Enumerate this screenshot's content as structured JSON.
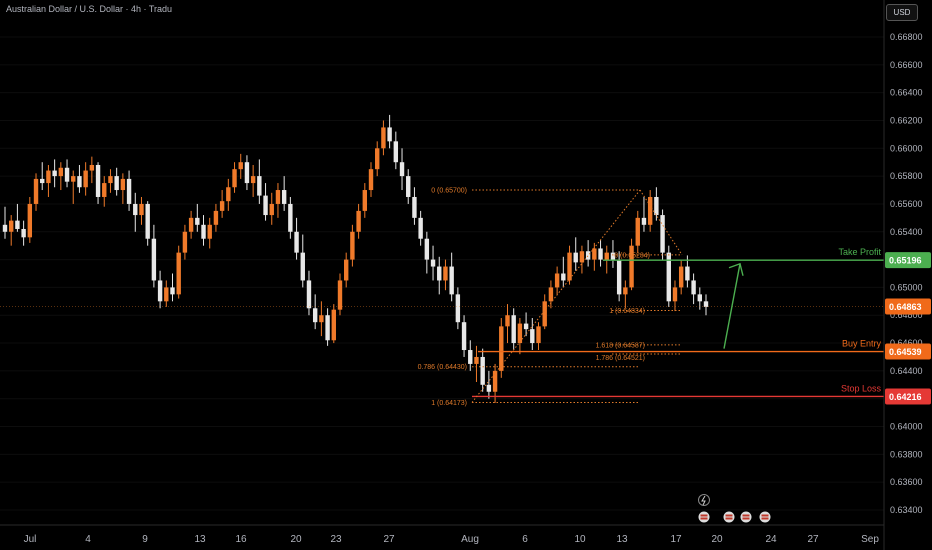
{
  "header": {
    "title": "Australian Dollar / U.S. Dollar · 4h · Tradu",
    "currency": "USD"
  },
  "chart_data": {
    "type": "candlestick",
    "y_ticks": [
      "0.66800",
      "0.66600",
      "0.66400",
      "0.66200",
      "0.66000",
      "0.65800",
      "0.65600",
      "0.65400",
      "0.65200",
      "0.65000",
      "0.64800",
      "0.64600",
      "0.64400",
      "0.64200",
      "0.64000",
      "0.63800",
      "0.63600",
      "0.63400"
    ],
    "x_ticks": [
      "Jul",
      "4",
      "9",
      "13",
      "16",
      "20",
      "23",
      "27",
      "Aug",
      "6",
      "10",
      "13",
      "17",
      "20",
      "24",
      "27",
      "Sep"
    ],
    "current_price": "0.64863",
    "levels": [
      {
        "name": "take-profit",
        "label": "Take Profit",
        "price": "0.65196",
        "color": "#4caf50"
      },
      {
        "name": "buy-entry",
        "label": "Buy Entry",
        "price": "0.64539",
        "color": "#f06a1a"
      },
      {
        "name": "stop-loss",
        "label": "Stop Loss",
        "price": "0.64216",
        "color": "#e53935"
      }
    ],
    "fib_labels": [
      "0 (0.65700)",
      "0.786 (0.64430)",
      "1 (0.64173)",
      "0 (0.65234)",
      "1 (0.64834)",
      "1.618 (0.64587)",
      "1.786 (0.64521)"
    ],
    "candles": [
      [
        0.6545,
        0.6558,
        0.6535,
        0.654
      ],
      [
        0.654,
        0.6552,
        0.653,
        0.6548
      ],
      [
        0.6548,
        0.656,
        0.654,
        0.6542
      ],
      [
        0.6542,
        0.6548,
        0.653,
        0.6536
      ],
      [
        0.6536,
        0.6565,
        0.6532,
        0.656
      ],
      [
        0.656,
        0.6582,
        0.6555,
        0.6578
      ],
      [
        0.6578,
        0.659,
        0.657,
        0.6575
      ],
      [
        0.6575,
        0.6588,
        0.6565,
        0.6584
      ],
      [
        0.6584,
        0.6592,
        0.6572,
        0.658
      ],
      [
        0.658,
        0.659,
        0.657,
        0.6586
      ],
      [
        0.6586,
        0.6592,
        0.6572,
        0.6576
      ],
      [
        0.6576,
        0.6584,
        0.656,
        0.658
      ],
      [
        0.658,
        0.6588,
        0.6568,
        0.6572
      ],
      [
        0.6572,
        0.659,
        0.6566,
        0.6584
      ],
      [
        0.6584,
        0.6594,
        0.6575,
        0.6588
      ],
      [
        0.6588,
        0.659,
        0.656,
        0.6565
      ],
      [
        0.6565,
        0.658,
        0.6558,
        0.6575
      ],
      [
        0.6575,
        0.6585,
        0.6568,
        0.658
      ],
      [
        0.658,
        0.6586,
        0.6566,
        0.657
      ],
      [
        0.657,
        0.6582,
        0.656,
        0.6578
      ],
      [
        0.6578,
        0.6584,
        0.6555,
        0.656
      ],
      [
        0.656,
        0.6568,
        0.654,
        0.6552
      ],
      [
        0.6552,
        0.6565,
        0.6545,
        0.656
      ],
      [
        0.656,
        0.6562,
        0.653,
        0.6535
      ],
      [
        0.6535,
        0.6545,
        0.65,
        0.6505
      ],
      [
        0.6505,
        0.6512,
        0.6485,
        0.649
      ],
      [
        0.649,
        0.6505,
        0.6486,
        0.65
      ],
      [
        0.65,
        0.651,
        0.649,
        0.6495
      ],
      [
        0.6495,
        0.653,
        0.6492,
        0.6525
      ],
      [
        0.6525,
        0.6545,
        0.652,
        0.654
      ],
      [
        0.654,
        0.6555,
        0.6535,
        0.655
      ],
      [
        0.655,
        0.656,
        0.654,
        0.6545
      ],
      [
        0.6545,
        0.6552,
        0.653,
        0.6535
      ],
      [
        0.6535,
        0.655,
        0.6528,
        0.6545
      ],
      [
        0.6545,
        0.656,
        0.654,
        0.6555
      ],
      [
        0.6555,
        0.657,
        0.655,
        0.6562
      ],
      [
        0.6562,
        0.6578,
        0.6555,
        0.6572
      ],
      [
        0.6572,
        0.659,
        0.6568,
        0.6585
      ],
      [
        0.6585,
        0.6596,
        0.6578,
        0.659
      ],
      [
        0.659,
        0.6595,
        0.657,
        0.6575
      ],
      [
        0.6575,
        0.6588,
        0.6565,
        0.658
      ],
      [
        0.658,
        0.6592,
        0.656,
        0.6566
      ],
      [
        0.6566,
        0.6575,
        0.6548,
        0.6552
      ],
      [
        0.6552,
        0.6568,
        0.6545,
        0.656
      ],
      [
        0.656,
        0.6575,
        0.655,
        0.657
      ],
      [
        0.657,
        0.658,
        0.6555,
        0.656
      ],
      [
        0.656,
        0.6565,
        0.6535,
        0.654
      ],
      [
        0.654,
        0.655,
        0.652,
        0.6525
      ],
      [
        0.6525,
        0.6538,
        0.65,
        0.6505
      ],
      [
        0.6505,
        0.6512,
        0.648,
        0.6485
      ],
      [
        0.6485,
        0.6495,
        0.647,
        0.6475
      ],
      [
        0.6475,
        0.649,
        0.6465,
        0.648
      ],
      [
        0.648,
        0.6485,
        0.6458,
        0.6462
      ],
      [
        0.6462,
        0.6488,
        0.646,
        0.6484
      ],
      [
        0.6484,
        0.651,
        0.648,
        0.6505
      ],
      [
        0.6505,
        0.6525,
        0.65,
        0.652
      ],
      [
        0.652,
        0.6545,
        0.6515,
        0.654
      ],
      [
        0.654,
        0.656,
        0.6535,
        0.6555
      ],
      [
        0.6555,
        0.6575,
        0.655,
        0.657
      ],
      [
        0.657,
        0.659,
        0.6565,
        0.6585
      ],
      [
        0.6585,
        0.6605,
        0.658,
        0.66
      ],
      [
        0.66,
        0.662,
        0.6595,
        0.6615
      ],
      [
        0.6615,
        0.6624,
        0.66,
        0.6605
      ],
      [
        0.6605,
        0.6612,
        0.6585,
        0.659
      ],
      [
        0.659,
        0.66,
        0.657,
        0.658
      ],
      [
        0.658,
        0.6585,
        0.656,
        0.6565
      ],
      [
        0.6565,
        0.6572,
        0.6545,
        0.655
      ],
      [
        0.655,
        0.6555,
        0.653,
        0.6535
      ],
      [
        0.6535,
        0.654,
        0.651,
        0.652
      ],
      [
        0.652,
        0.653,
        0.6505,
        0.6515
      ],
      [
        0.6515,
        0.6522,
        0.6495,
        0.6505
      ],
      [
        0.6505,
        0.652,
        0.6498,
        0.6515
      ],
      [
        0.6515,
        0.6525,
        0.649,
        0.6495
      ],
      [
        0.6495,
        0.65,
        0.647,
        0.6475
      ],
      [
        0.6475,
        0.648,
        0.645,
        0.6455
      ],
      [
        0.6455,
        0.6462,
        0.644,
        0.6445
      ],
      [
        0.6445,
        0.6458,
        0.6432,
        0.645
      ],
      [
        0.645,
        0.6456,
        0.6425,
        0.643
      ],
      [
        0.643,
        0.644,
        0.642,
        0.6425
      ],
      [
        0.6425,
        0.6445,
        0.6417,
        0.644
      ],
      [
        0.644,
        0.6478,
        0.6435,
        0.6472
      ],
      [
        0.6472,
        0.6488,
        0.646,
        0.648
      ],
      [
        0.648,
        0.6485,
        0.6455,
        0.646
      ],
      [
        0.646,
        0.6478,
        0.6452,
        0.6474
      ],
      [
        0.6474,
        0.6482,
        0.6465,
        0.647
      ],
      [
        0.647,
        0.6478,
        0.6455,
        0.646
      ],
      [
        0.646,
        0.6475,
        0.6455,
        0.6472
      ],
      [
        0.6472,
        0.6495,
        0.647,
        0.649
      ],
      [
        0.649,
        0.6505,
        0.6485,
        0.65
      ],
      [
        0.65,
        0.6515,
        0.6495,
        0.651
      ],
      [
        0.651,
        0.6522,
        0.65,
        0.6505
      ],
      [
        0.6505,
        0.653,
        0.6502,
        0.6525
      ],
      [
        0.6525,
        0.6536,
        0.6512,
        0.6518
      ],
      [
        0.6518,
        0.653,
        0.651,
        0.6526
      ],
      [
        0.6526,
        0.6534,
        0.6515,
        0.652
      ],
      [
        0.652,
        0.6532,
        0.6512,
        0.6528
      ],
      [
        0.6528,
        0.6534,
        0.6515,
        0.652
      ],
      [
        0.652,
        0.653,
        0.651,
        0.6525
      ],
      [
        0.6525,
        0.6534,
        0.6514,
        0.652
      ],
      [
        0.652,
        0.6526,
        0.649,
        0.6495
      ],
      [
        0.6495,
        0.6505,
        0.6485,
        0.65
      ],
      [
        0.65,
        0.6535,
        0.6498,
        0.653
      ],
      [
        0.653,
        0.6555,
        0.6525,
        0.655
      ],
      [
        0.655,
        0.6565,
        0.654,
        0.6545
      ],
      [
        0.6545,
        0.657,
        0.654,
        0.6565
      ],
      [
        0.6565,
        0.6572,
        0.6548,
        0.6552
      ],
      [
        0.6552,
        0.6556,
        0.652,
        0.6525
      ],
      [
        0.6525,
        0.653,
        0.6486,
        0.649
      ],
      [
        0.649,
        0.6505,
        0.6483,
        0.65
      ],
      [
        0.65,
        0.652,
        0.6495,
        0.6515
      ],
      [
        0.6515,
        0.6523,
        0.65,
        0.6505
      ],
      [
        0.6505,
        0.651,
        0.6488,
        0.6495
      ],
      [
        0.6495,
        0.65,
        0.6484,
        0.649
      ],
      [
        0.649,
        0.6495,
        0.648,
        0.6486
      ]
    ]
  }
}
